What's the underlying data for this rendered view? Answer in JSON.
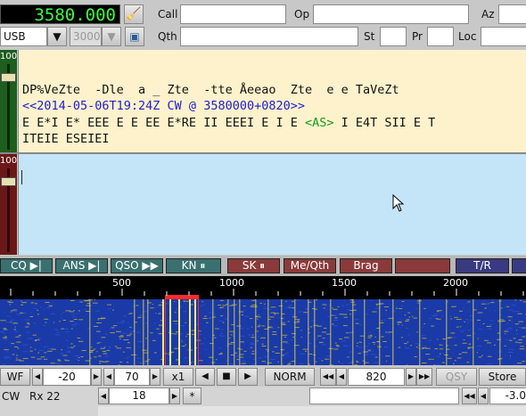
{
  "top": {
    "frequency": "3580.000",
    "mode": "USB",
    "bandwidth": "3000",
    "call_label": "Call",
    "op_label": "Op",
    "az_label": "Az",
    "qth_label": "Qth",
    "st_label": "St",
    "pr_label": "Pr",
    "loc_label": "Loc"
  },
  "rx_panel": {
    "level": "100",
    "lines": [
      "DP%VeZte  -Dle  a _ Zte  -tte Åeeao  Zte  e e TaVeZt",
      "<<2014-05-06T19:24Z CW @ 3580000+0820>>",
      "E E*I E* EEE E E EE E*RE II EEEI E I E ",
      "<AS>",
      " I E4T SII E T",
      "ITEIE ESEIEI"
    ]
  },
  "tx_panel": {
    "level": "100"
  },
  "macros": [
    {
      "label": "CQ ▶|",
      "color": "#3a7070"
    },
    {
      "label": "ANS ▶|",
      "color": "#3a7070"
    },
    {
      "label": "QSO ▶▶",
      "color": "#3a7070"
    },
    {
      "label": "KN ⏸",
      "color": "#3a7070"
    },
    {
      "label": "SK ⏸",
      "color": "#8a3a3a"
    },
    {
      "label": "Me/Qth",
      "color": "#8a3a3a"
    },
    {
      "label": "Brag",
      "color": "#8a3a3a"
    },
    {
      "label": "",
      "color": "#8a3a3a"
    },
    {
      "label": "T/R",
      "color": "#3a3a80"
    },
    {
      "label": "",
      "color": "#3a3a80"
    }
  ],
  "scale": {
    "ticks": [
      "500",
      "1000",
      "1500",
      "2000"
    ]
  },
  "controls": {
    "wf_label": "WF",
    "wf_low": "-20",
    "wf_range": "70",
    "zoom": "x1",
    "norm": "NORM",
    "offset": "820",
    "qsy": "QSY",
    "store": "Store"
  },
  "status": {
    "mode": "CW",
    "rx": "Rx 22",
    "value": "18",
    "star": "*",
    "level": "-3.0"
  },
  "colors": {
    "rx_bg": "#fdf2cc",
    "tx_bg": "#c4e4f8",
    "marker": "#ff2a2a",
    "freq_fg": "#3cff3c"
  }
}
